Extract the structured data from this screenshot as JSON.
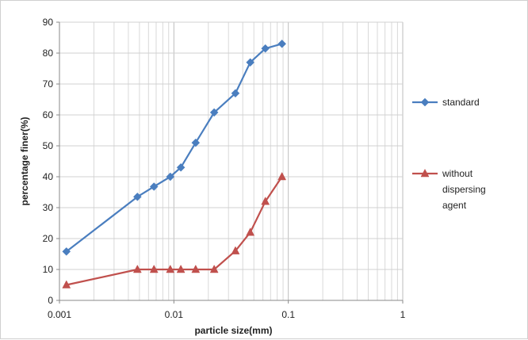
{
  "chart_data": {
    "type": "line",
    "title": "",
    "xlabel": "particle size(mm)",
    "ylabel": "percentage finer(%)",
    "x_scale": "log",
    "xlim": [
      0.001,
      1
    ],
    "ylim": [
      0,
      90
    ],
    "x_ticks": [
      "0.001",
      "0.01",
      "0.1",
      "1"
    ],
    "y_ticks": [
      "0",
      "10",
      "20",
      "30",
      "40",
      "50",
      "60",
      "70",
      "80",
      "90"
    ],
    "grid": true,
    "legend_position": "right",
    "series": [
      {
        "name": "standard",
        "color": "#4a7ebf",
        "marker": "diamond",
        "x": [
          0.00115,
          0.0048,
          0.0067,
          0.0093,
          0.0115,
          0.0155,
          0.0225,
          0.0345,
          0.0465,
          0.063,
          0.088
        ],
        "y": [
          15.8,
          33.5,
          36.8,
          40,
          43,
          51,
          60.8,
          67,
          77,
          81.5,
          83
        ]
      },
      {
        "name": "without dispersing agent",
        "color": "#c0504d",
        "marker": "triangle",
        "x": [
          0.00115,
          0.0048,
          0.0067,
          0.0093,
          0.0115,
          0.0155,
          0.0225,
          0.0345,
          0.0465,
          0.063,
          0.088
        ],
        "y": [
          5,
          10,
          10,
          10,
          10,
          10,
          10,
          16,
          22,
          32,
          40
        ]
      }
    ]
  }
}
